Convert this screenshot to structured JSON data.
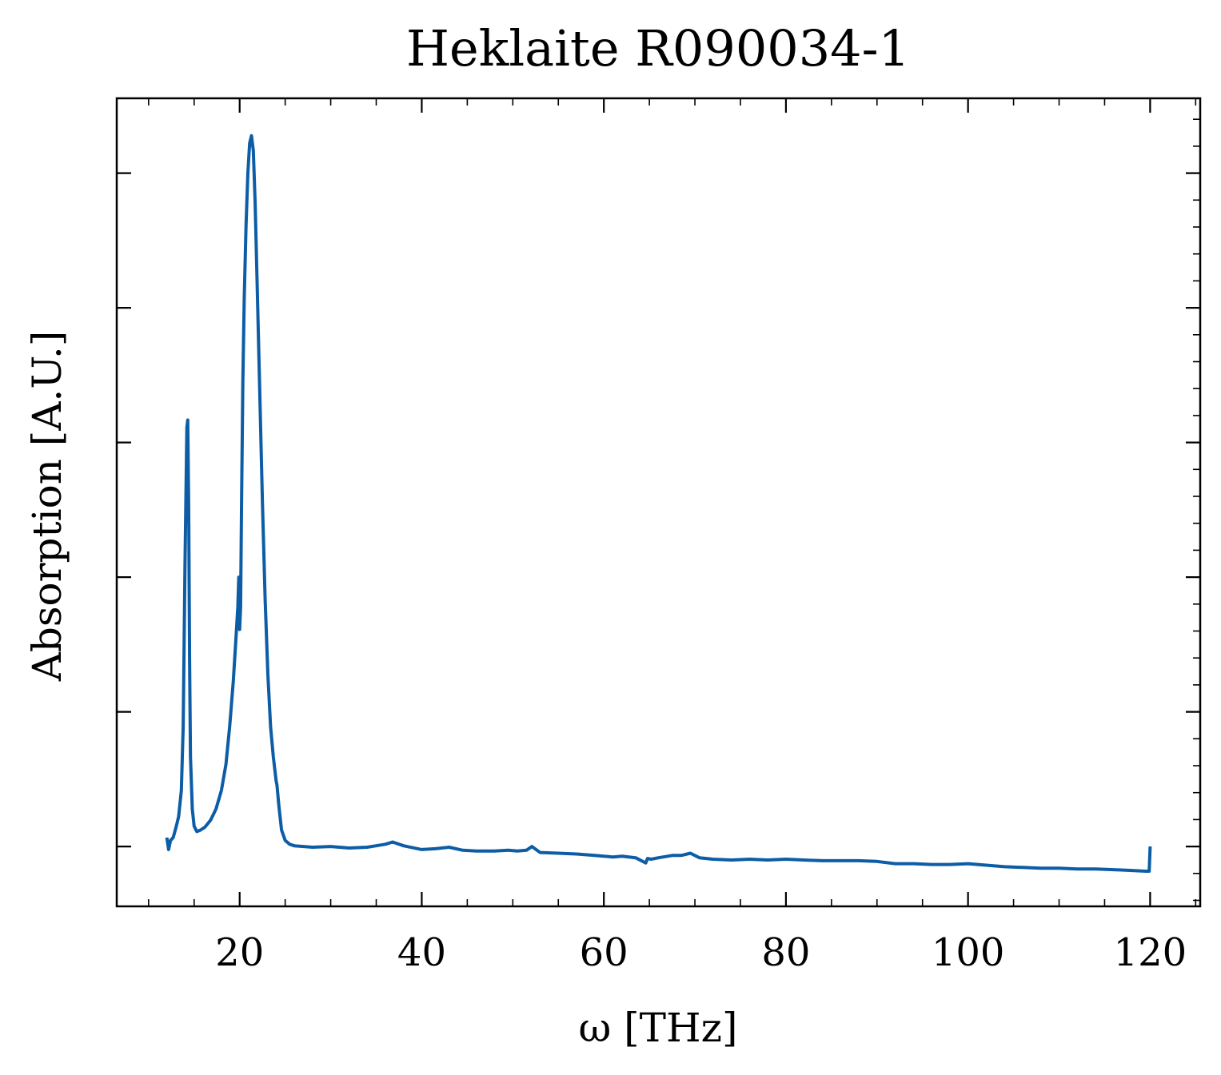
{
  "chart_data": {
    "type": "line",
    "title": "Heklaite R090034-1",
    "xlabel": "ω [THz]",
    "ylabel": "Absorption [A.U.]",
    "xlim": [
      6.5,
      125.5
    ],
    "ylim": [
      -0.08,
      1.0
    ],
    "x_ticks": [
      20,
      40,
      60,
      80,
      100,
      120
    ],
    "x_tick_labels": [
      "20",
      "40",
      "60",
      "80",
      "100",
      "120"
    ],
    "y_ticks": [
      0.0,
      0.18,
      0.36,
      0.54,
      0.72,
      0.9
    ],
    "y_tick_labels_shown": false,
    "grid": false,
    "line_color": "#0C5DA5",
    "series": [
      {
        "x": [
          12.0,
          12.2,
          12.4,
          12.7,
          13.0,
          13.3,
          13.6,
          13.8,
          14.0,
          14.2,
          14.3,
          14.4,
          14.5,
          14.6,
          14.8,
          15.0,
          15.3,
          15.7,
          16.2,
          16.8,
          17.4,
          18.0,
          18.5,
          18.9,
          19.3,
          19.6,
          19.8,
          19.9,
          20.0,
          20.1,
          20.2,
          20.35,
          20.5,
          20.7,
          20.9,
          21.1,
          21.3,
          21.5,
          21.7,
          21.9,
          22.2,
          22.5,
          22.8,
          23.1,
          23.4,
          23.7,
          24.0,
          24.1,
          24.3,
          24.6,
          25.0,
          25.5,
          26.0,
          27.0,
          28.0,
          30.0,
          32.0,
          34.0,
          35.0,
          36.0,
          36.8,
          38.0,
          40.0,
          41.5,
          43.0,
          44.5,
          46.0,
          48.0,
          49.5,
          50.5,
          51.5,
          52.1,
          53.0,
          55.0,
          57.0,
          59.0,
          60.0,
          61.0,
          62.0,
          63.5,
          64.6,
          64.8,
          65.2,
          66.0,
          67.5,
          68.5,
          69.5,
          70.5,
          72.0,
          74.0,
          76.0,
          78.0,
          80.0,
          82.0,
          84.0,
          86.0,
          88.0,
          90.0,
          92.0,
          94.0,
          96.0,
          98.0,
          100.0,
          102.0,
          104.0,
          106.0,
          108.0,
          110.0,
          112.0,
          114.0,
          116.0,
          118.0,
          119.5,
          119.9,
          120.0
        ],
        "y": [
          0.012,
          -0.004,
          0.008,
          0.012,
          0.025,
          0.04,
          0.075,
          0.16,
          0.38,
          0.56,
          0.57,
          0.45,
          0.25,
          0.12,
          0.05,
          0.027,
          0.02,
          0.022,
          0.026,
          0.035,
          0.05,
          0.075,
          0.11,
          0.16,
          0.22,
          0.28,
          0.32,
          0.36,
          0.29,
          0.32,
          0.45,
          0.62,
          0.73,
          0.83,
          0.9,
          0.94,
          0.95,
          0.93,
          0.86,
          0.76,
          0.61,
          0.46,
          0.33,
          0.23,
          0.16,
          0.12,
          0.088,
          0.082,
          0.055,
          0.022,
          0.008,
          0.003,
          0.001,
          0.0,
          -0.001,
          0.0,
          -0.002,
          -0.001,
          0.001,
          0.003,
          0.006,
          0.001,
          -0.004,
          -0.003,
          -0.001,
          -0.005,
          -0.006,
          -0.006,
          -0.005,
          -0.006,
          -0.005,
          0.0,
          -0.008,
          -0.009,
          -0.01,
          -0.012,
          -0.013,
          -0.014,
          -0.013,
          -0.015,
          -0.022,
          -0.016,
          -0.017,
          -0.015,
          -0.012,
          -0.012,
          -0.009,
          -0.015,
          -0.017,
          -0.018,
          -0.017,
          -0.018,
          -0.017,
          -0.018,
          -0.019,
          -0.019,
          -0.019,
          -0.02,
          -0.023,
          -0.023,
          -0.024,
          -0.024,
          -0.023,
          -0.025,
          -0.027,
          -0.028,
          -0.029,
          -0.029,
          -0.03,
          -0.03,
          -0.031,
          -0.032,
          -0.033,
          -0.033,
          0.0
        ]
      }
    ]
  }
}
